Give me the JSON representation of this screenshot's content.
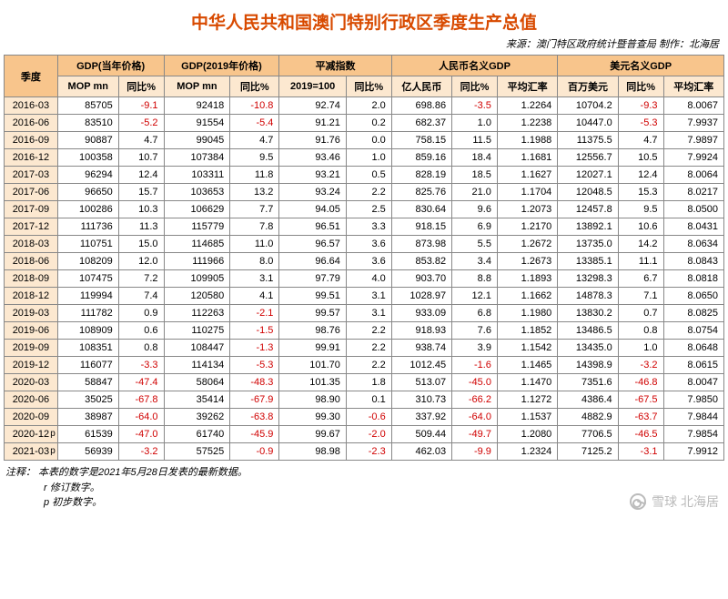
{
  "title": "中华人民共和国澳门特别行政区季度生产总值",
  "source": "来源：澳门特区政府统计暨普查局   制作：北海居",
  "watermark": "雪球  北海居",
  "colors": {
    "title": "#d84a00",
    "header1_bg": "#f8c58c",
    "header2_bg": "#fce8d0",
    "quarter_bg": "#fce8d0",
    "border": "#888888",
    "negative": "#d00000",
    "text": "#000000",
    "background": "#ffffff"
  },
  "table_style": {
    "font_size": 11,
    "cell_align": "right",
    "header_align": "center",
    "border_width": 1
  },
  "headers": {
    "quarter": "季度",
    "g1": "GDP(当年价格)",
    "g2": "GDP(2019年价格)",
    "g3": "平减指数",
    "g4": "人民币名义GDP",
    "g5": "美元名义GDP"
  },
  "subs": [
    "MOP mn",
    "同比%",
    "MOP mn",
    "同比%",
    "2019=100",
    "同比%",
    "亿人民币",
    "同比%",
    "平均汇率",
    "百万美元",
    "同比%",
    "平均汇率"
  ],
  "neg_cols": [
    1,
    3,
    5,
    7,
    10
  ],
  "rows": [
    {
      "q": "2016-03",
      "c": [
        "85705",
        "-9.1",
        "92418",
        "-10.8",
        "92.74",
        "2.0",
        "698.86",
        "-3.5",
        "1.2264",
        "10704.2",
        "-9.3",
        "8.0067"
      ]
    },
    {
      "q": "2016-06",
      "c": [
        "83510",
        "-5.2",
        "91554",
        "-5.4",
        "91.21",
        "0.2",
        "682.37",
        "1.0",
        "1.2238",
        "10447.0",
        "-5.3",
        "7.9937"
      ]
    },
    {
      "q": "2016-09",
      "c": [
        "90887",
        "4.7",
        "99045",
        "4.7",
        "91.76",
        "0.0",
        "758.15",
        "11.5",
        "1.1988",
        "11375.5",
        "4.7",
        "7.9897"
      ]
    },
    {
      "q": "2016-12",
      "c": [
        "100358",
        "10.7",
        "107384",
        "9.5",
        "93.46",
        "1.0",
        "859.16",
        "18.4",
        "1.1681",
        "12556.7",
        "10.5",
        "7.9924"
      ]
    },
    {
      "q": "2017-03",
      "c": [
        "96294",
        "12.4",
        "103311",
        "11.8",
        "93.21",
        "0.5",
        "828.19",
        "18.5",
        "1.1627",
        "12027.1",
        "12.4",
        "8.0064"
      ]
    },
    {
      "q": "2017-06",
      "c": [
        "96650",
        "15.7",
        "103653",
        "13.2",
        "93.24",
        "2.2",
        "825.76",
        "21.0",
        "1.1704",
        "12048.5",
        "15.3",
        "8.0217"
      ]
    },
    {
      "q": "2017-09",
      "c": [
        "100286",
        "10.3",
        "106629",
        "7.7",
        "94.05",
        "2.5",
        "830.64",
        "9.6",
        "1.2073",
        "12457.8",
        "9.5",
        "8.0500"
      ]
    },
    {
      "q": "2017-12",
      "c": [
        "111736",
        "11.3",
        "115779",
        "7.8",
        "96.51",
        "3.3",
        "918.15",
        "6.9",
        "1.2170",
        "13892.1",
        "10.6",
        "8.0431"
      ]
    },
    {
      "q": "2018-03",
      "c": [
        "110751",
        "15.0",
        "114685",
        "11.0",
        "96.57",
        "3.6",
        "873.98",
        "5.5",
        "1.2672",
        "13735.0",
        "14.2",
        "8.0634"
      ]
    },
    {
      "q": "2018-06",
      "c": [
        "108209",
        "12.0",
        "111966",
        "8.0",
        "96.64",
        "3.6",
        "853.82",
        "3.4",
        "1.2673",
        "13385.1",
        "11.1",
        "8.0843"
      ]
    },
    {
      "q": "2018-09",
      "c": [
        "107475",
        "7.2",
        "109905",
        "3.1",
        "97.79",
        "4.0",
        "903.70",
        "8.8",
        "1.1893",
        "13298.3",
        "6.7",
        "8.0818"
      ]
    },
    {
      "q": "2018-12",
      "c": [
        "119994",
        "7.4",
        "120580",
        "4.1",
        "99.51",
        "3.1",
        "1028.97",
        "12.1",
        "1.1662",
        "14878.3",
        "7.1",
        "8.0650"
      ]
    },
    {
      "q": "2019-03",
      "c": [
        "111782",
        "0.9",
        "112263",
        "-2.1",
        "99.57",
        "3.1",
        "933.09",
        "6.8",
        "1.1980",
        "13830.2",
        "0.7",
        "8.0825"
      ]
    },
    {
      "q": "2019-06",
      "c": [
        "108909",
        "0.6",
        "110275",
        "-1.5",
        "98.76",
        "2.2",
        "918.93",
        "7.6",
        "1.1852",
        "13486.5",
        "0.8",
        "8.0754"
      ]
    },
    {
      "q": "2019-09",
      "c": [
        "108351",
        "0.8",
        "108447",
        "-1.3",
        "99.91",
        "2.2",
        "938.74",
        "3.9",
        "1.1542",
        "13435.0",
        "1.0",
        "8.0648"
      ]
    },
    {
      "q": "2019-12",
      "c": [
        "116077",
        "-3.3",
        "114134",
        "-5.3",
        "101.70",
        "2.2",
        "1012.45",
        "-1.6",
        "1.1465",
        "14398.9",
        "-3.2",
        "8.0615"
      ]
    },
    {
      "q": "2020-03",
      "c": [
        "58847",
        "-47.4",
        "58064",
        "-48.3",
        "101.35",
        "1.8",
        "513.07",
        "-45.0",
        "1.1470",
        "7351.6",
        "-46.8",
        "8.0047"
      ]
    },
    {
      "q": "2020-06",
      "c": [
        "35025",
        "-67.8",
        "35414",
        "-67.9",
        "98.90",
        "0.1",
        "310.73",
        "-66.2",
        "1.1272",
        "4386.4",
        "-67.5",
        "7.9850"
      ]
    },
    {
      "q": "2020-09",
      "c": [
        "38987",
        "-64.0",
        "39262",
        "-63.8",
        "99.30",
        "-0.6",
        "337.92",
        "-64.0",
        "1.1537",
        "4882.9",
        "-63.7",
        "7.9844"
      ]
    },
    {
      "q": "2020-12",
      "flag": "p",
      "c": [
        "61539",
        "-47.0",
        "61740",
        "-45.9",
        "99.67",
        "-2.0",
        "509.44",
        "-49.7",
        "1.2080",
        "7706.5",
        "-46.5",
        "7.9854"
      ]
    },
    {
      "q": "2021-03",
      "flag": "p",
      "c": [
        "56939",
        "-3.2",
        "57525",
        "-0.9",
        "98.98",
        "-2.3",
        "462.03",
        "-9.9",
        "1.2324",
        "7125.2",
        "-3.1",
        "7.9912"
      ]
    }
  ],
  "notes": [
    "注释：   本表的数字是2021年5月28日发表的最新数据。",
    "r  修订数字。",
    "p  初步数字。"
  ]
}
